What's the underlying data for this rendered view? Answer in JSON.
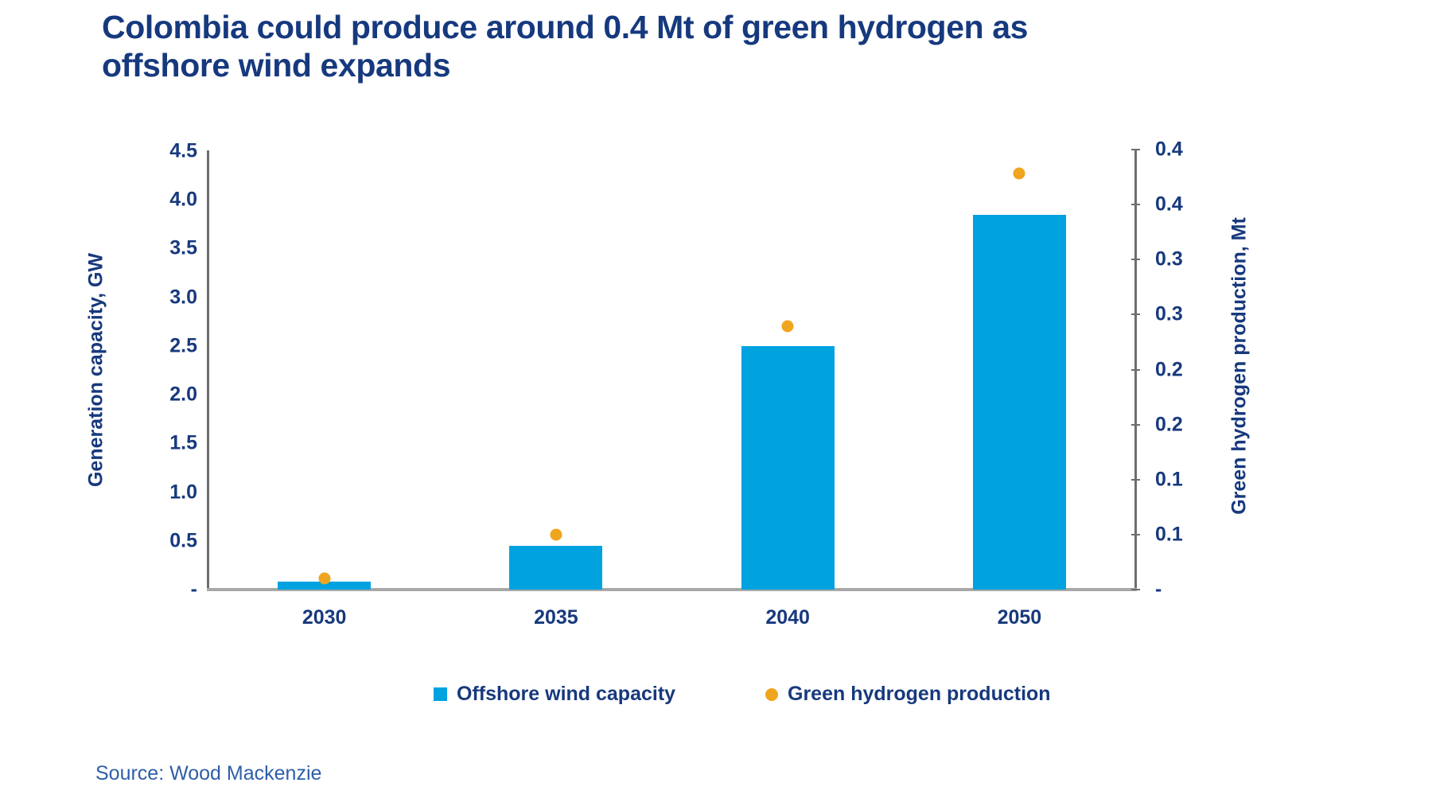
{
  "title_lines": [
    "Colombia could produce around 0.4 Mt of green hydrogen as",
    "offshore wind expands"
  ],
  "source": "Source: Wood Mackenzie",
  "legend": {
    "items": [
      {
        "label": "Offshore wind capacity",
        "color": "#00A2E0",
        "marker": "square"
      },
      {
        "label": "Green hydrogen production",
        "color": "#EFA51E",
        "marker": "circle"
      }
    ]
  },
  "colors": {
    "title_text": "#16397E",
    "axis_text": "#17397D",
    "bar": "#00A2E0",
    "dot": "#EFA51E",
    "axis_line": "#6E6E6E",
    "baseline": "#A8A8A8",
    "source_text": "#2E5EA8"
  },
  "chart_data": {
    "type": "bar",
    "subtype": "combo-bar-scatter-dual-axis",
    "title": "Colombia could produce around 0.4 Mt of green hydrogen as offshore wind expands",
    "categories": [
      "2030",
      "2035",
      "2040",
      "2050"
    ],
    "series": [
      {
        "name": "Offshore wind capacity",
        "type": "bar",
        "axis": "left",
        "color": "#00A2E0",
        "values": [
          0.08,
          0.45,
          2.5,
          3.85
        ]
      },
      {
        "name": "Green hydrogen production",
        "type": "scatter",
        "axis": "right",
        "color": "#EFA51E",
        "values": [
          0.01,
          0.05,
          0.24,
          0.38
        ]
      }
    ],
    "left_axis": {
      "label": "Generation capacity, GW",
      "min": 0,
      "max": 4.5,
      "tick_step": 0.5,
      "tick_labels": [
        "4.5",
        "4.0",
        "3.5",
        "3.0",
        "2.5",
        "2.0",
        "1.5",
        "1.0",
        "0.5",
        "-"
      ]
    },
    "right_axis": {
      "label": "Green hydrogen production, Mt",
      "min": 0,
      "max": 0.4,
      "tick_step": 0.05,
      "tick_labels": [
        "0.4",
        "0.4",
        "0.3",
        "0.3",
        "0.2",
        "0.2",
        "0.1",
        "0.1",
        "-"
      ]
    },
    "grid": false,
    "legend_position": "bottom"
  }
}
